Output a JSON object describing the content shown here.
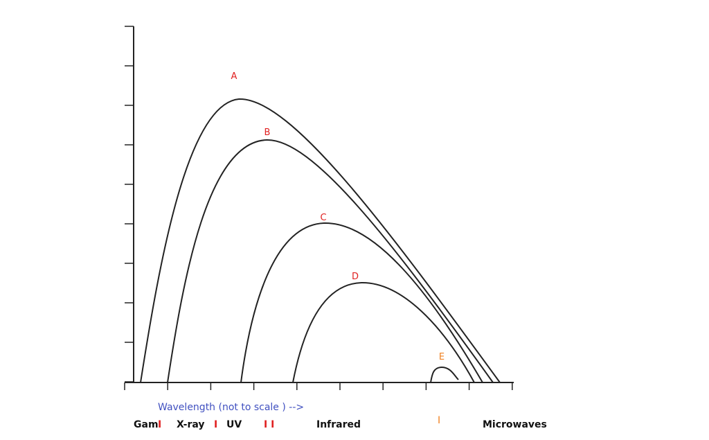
{
  "curves": [
    {
      "label": "A"
    },
    {
      "label": "B"
    },
    {
      "label": "C"
    },
    {
      "label": "D"
    },
    {
      "label": "E"
    }
  ],
  "axis_label": "Wavelength (not to scale ) -->",
  "bands": [
    "Gam",
    "X-ray",
    "UV",
    "Infrared",
    "Microwaves"
  ],
  "separators": [
    "I",
    "I",
    "I I",
    "I"
  ]
}
